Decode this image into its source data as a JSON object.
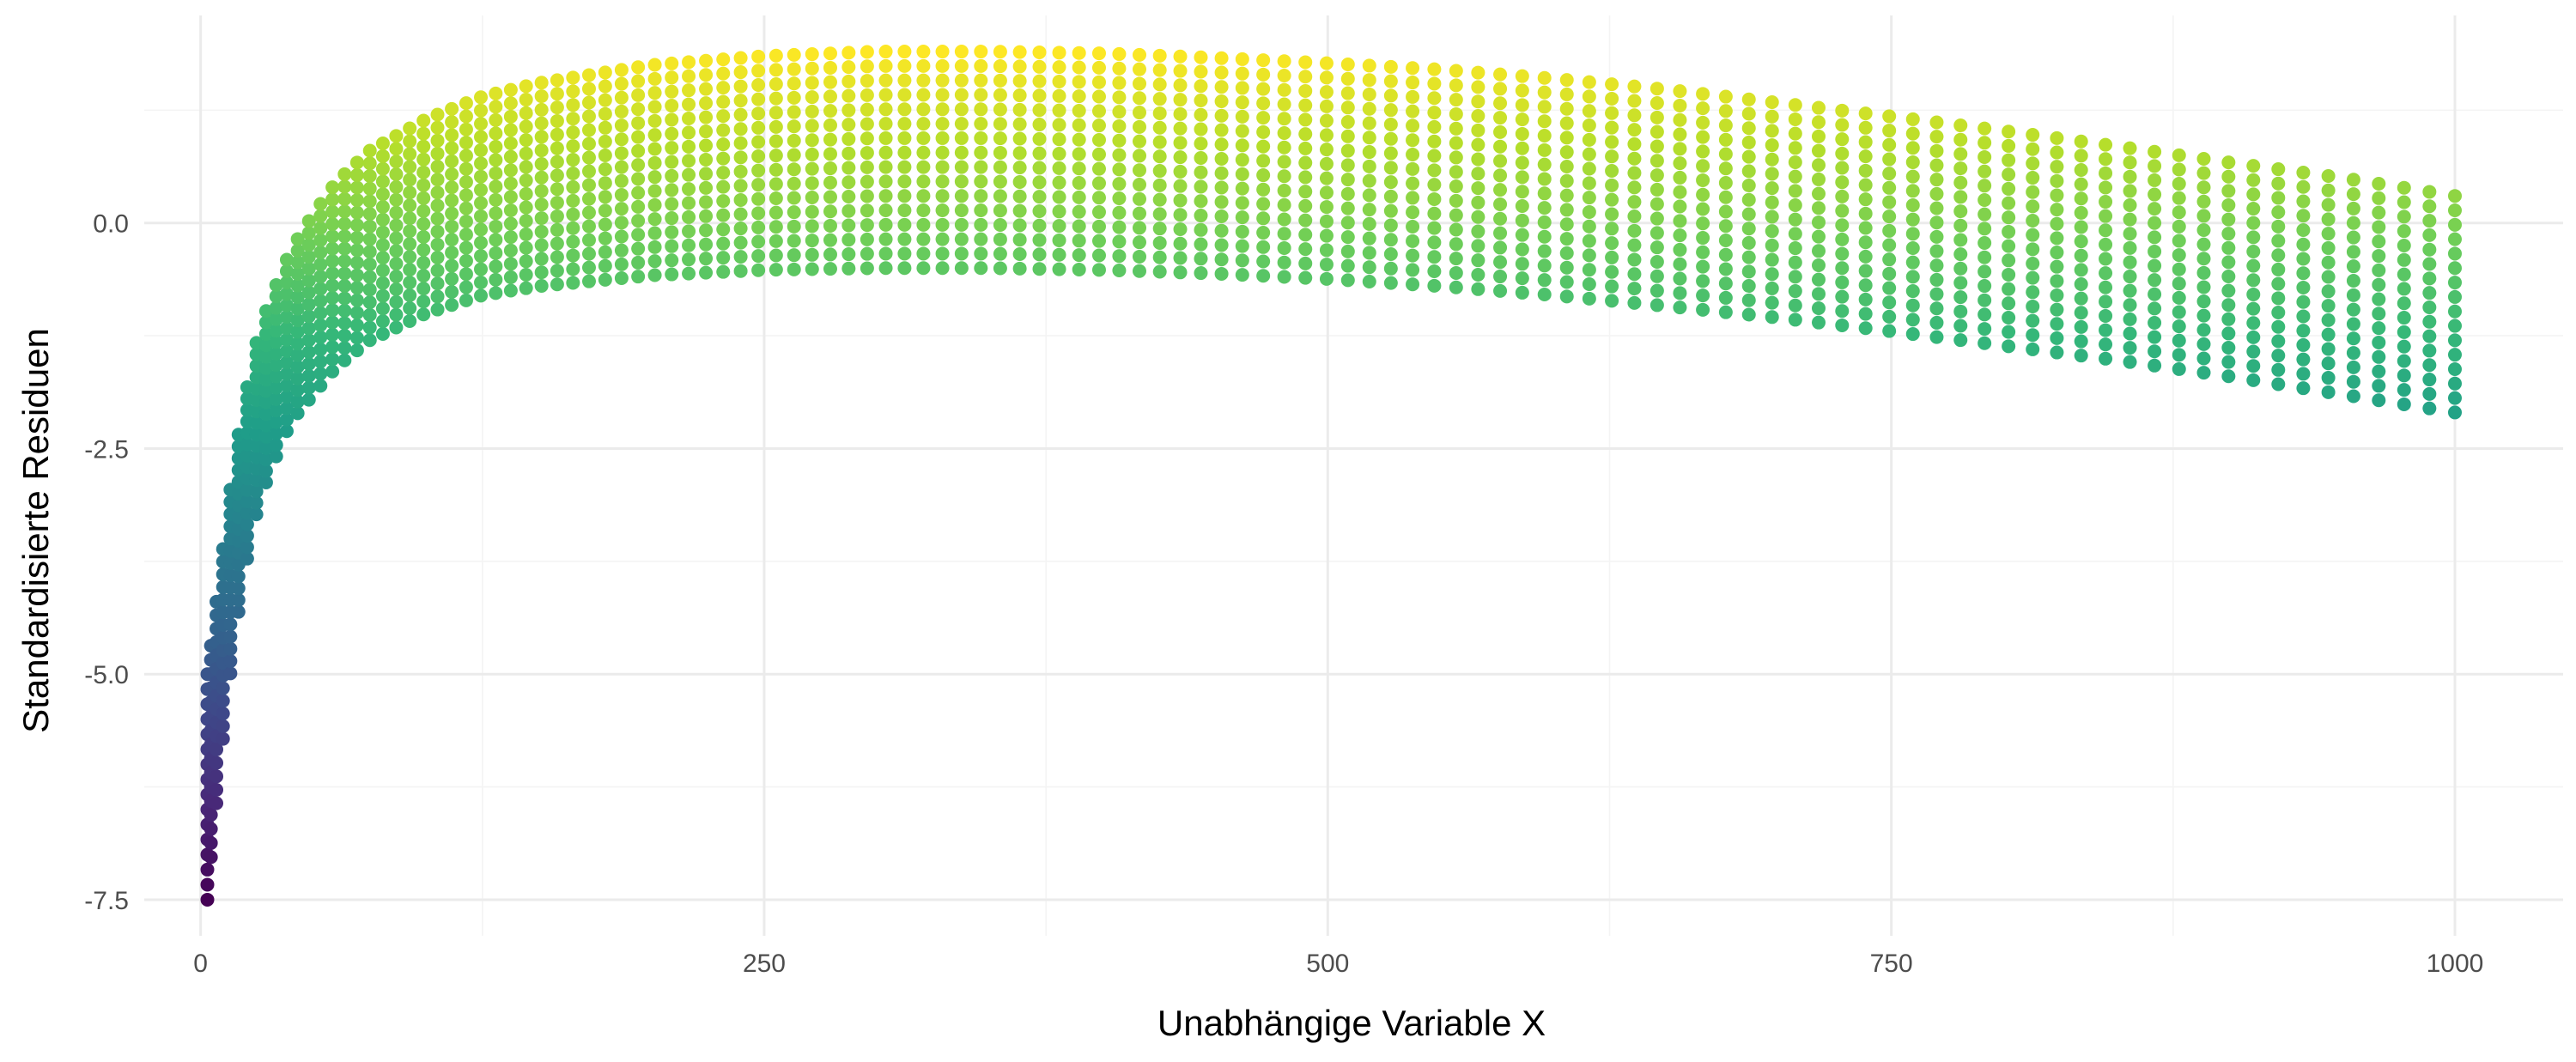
{
  "chart_data": {
    "type": "scatter",
    "title": "",
    "xlabel": "Unabhängige Variable X",
    "ylabel": "Standardisierte Residuen",
    "xlim": [
      -25,
      1048
    ],
    "ylim": [
      -7.9,
      2.3
    ],
    "x_ticks": [
      0,
      250,
      500,
      750,
      1000
    ],
    "x_tick_labels": [
      "0",
      "250",
      "500",
      "750",
      "1000"
    ],
    "y_ticks": [
      -7.5,
      -5.0,
      -2.5,
      0.0
    ],
    "y_tick_labels": [
      "-7.5",
      "-5.0",
      "-2.5",
      "0.0"
    ],
    "grid": true,
    "legend": "none",
    "color_scale": "viridis",
    "color_mapped_to": "y",
    "colors": {
      "viridis": [
        "#440154",
        "#482878",
        "#3e4989",
        "#31688e",
        "#26828e",
        "#1f9e89",
        "#35b779",
        "#6ece58",
        "#b5de2b",
        "#fde725"
      ],
      "grid_major": "#ebebeb",
      "grid_minor": "#f4f4f4",
      "tick_text": "#4d4d4d",
      "title_text": "#000000"
    },
    "series": [
      {
        "x": [
          3,
          5,
          8,
          10,
          15,
          20,
          25,
          30,
          40,
          50,
          60,
          75,
          100,
          125,
          150,
          200,
          250,
          300,
          350,
          400,
          450,
          500,
          550,
          600,
          650,
          700,
          750,
          800,
          850,
          900,
          950,
          1000
        ],
        "y_upper": [
          -5.0,
          -4.6,
          -4.0,
          -3.6,
          -2.6,
          -1.9,
          -1.3,
          -0.9,
          -0.3,
          0.1,
          0.45,
          0.8,
          1.15,
          1.4,
          1.55,
          1.75,
          1.85,
          1.9,
          1.9,
          1.88,
          1.83,
          1.77,
          1.7,
          1.6,
          1.48,
          1.33,
          1.18,
          1.02,
          0.85,
          0.67,
          0.5,
          0.3
        ],
        "y_lower": [
          -7.5,
          -6.9,
          -6.2,
          -5.7,
          -4.6,
          -3.8,
          -3.2,
          -2.8,
          -2.2,
          -1.9,
          -1.6,
          -1.3,
          -1.0,
          -0.8,
          -0.7,
          -0.58,
          -0.52,
          -0.5,
          -0.5,
          -0.52,
          -0.56,
          -0.62,
          -0.7,
          -0.8,
          -0.92,
          -1.05,
          -1.2,
          -1.36,
          -1.52,
          -1.7,
          -1.9,
          -2.1
        ]
      }
    ]
  }
}
